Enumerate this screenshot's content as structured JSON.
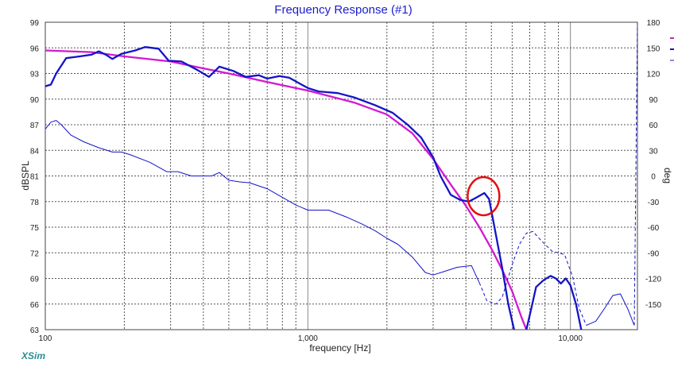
{
  "chart_data": {
    "type": "line",
    "title": "Frequency Response (#1)",
    "xlabel": "frequency [Hz]",
    "ylabel_left": "dBSPL",
    "ylabel_right": "deg",
    "x_scale": "log",
    "xlim": [
      100,
      18000
    ],
    "ylim_left": [
      63,
      99
    ],
    "ylim_right": [
      -180,
      180
    ],
    "x_tick_labels": [
      {
        "value": 100,
        "label": "100"
      },
      {
        "value": 1000,
        "label": "1,000"
      },
      {
        "value": 10000,
        "label": "10,000"
      }
    ],
    "y_left_ticks": [
      63,
      66,
      69,
      72,
      75,
      78,
      81,
      84,
      87,
      90,
      93,
      96,
      99
    ],
    "y_right_ticks": [
      -150,
      -120,
      -90,
      -60,
      -30,
      0,
      30,
      60,
      90,
      120,
      150,
      180
    ],
    "grid": true,
    "series": [
      {
        "axis": "left",
        "color": "#d11ad1",
        "style": "solid",
        "points": [
          [
            100,
            95.7
          ],
          [
            150,
            95.5
          ],
          [
            200,
            95.0
          ],
          [
            300,
            94.4
          ],
          [
            400,
            93.6
          ],
          [
            500,
            93.0
          ],
          [
            700,
            92.0
          ],
          [
            1000,
            91.0
          ],
          [
            1500,
            89.6
          ],
          [
            2000,
            88.2
          ],
          [
            2500,
            86.0
          ],
          [
            3000,
            83.0
          ],
          [
            3500,
            80.0
          ],
          [
            4000,
            77.5
          ],
          [
            4500,
            75.0
          ],
          [
            5000,
            72.5
          ],
          [
            5500,
            70.0
          ],
          [
            6000,
            67.5
          ],
          [
            6500,
            64.5
          ],
          [
            6800,
            63.0
          ]
        ]
      },
      {
        "axis": "left",
        "color": "#1414c8",
        "style": "solid",
        "points": [
          [
            100,
            91.5
          ],
          [
            105,
            91.7
          ],
          [
            110,
            93.0
          ],
          [
            120,
            94.8
          ],
          [
            135,
            95.0
          ],
          [
            150,
            95.2
          ],
          [
            160,
            95.6
          ],
          [
            170,
            95.2
          ],
          [
            180,
            94.7
          ],
          [
            195,
            95.3
          ],
          [
            220,
            95.7
          ],
          [
            240,
            96.1
          ],
          [
            270,
            95.9
          ],
          [
            295,
            94.5
          ],
          [
            330,
            94.4
          ],
          [
            380,
            93.4
          ],
          [
            420,
            92.6
          ],
          [
            460,
            93.8
          ],
          [
            520,
            93.3
          ],
          [
            580,
            92.6
          ],
          [
            650,
            92.8
          ],
          [
            700,
            92.4
          ],
          [
            780,
            92.7
          ],
          [
            850,
            92.5
          ],
          [
            920,
            91.9
          ],
          [
            1000,
            91.3
          ],
          [
            1100,
            90.9
          ],
          [
            1300,
            90.7
          ],
          [
            1500,
            90.2
          ],
          [
            1800,
            89.3
          ],
          [
            2100,
            88.4
          ],
          [
            2400,
            87.0
          ],
          [
            2700,
            85.5
          ],
          [
            3000,
            83.2
          ],
          [
            3200,
            81.0
          ],
          [
            3500,
            78.8
          ],
          [
            3800,
            78.2
          ],
          [
            4100,
            78.0
          ],
          [
            4400,
            78.5
          ],
          [
            4700,
            79.0
          ],
          [
            4900,
            78.3
          ],
          [
            5100,
            75.5
          ],
          [
            5500,
            70.2
          ],
          [
            5800,
            66.0
          ],
          [
            6100,
            63.0
          ]
        ]
      },
      {
        "axis": "left",
        "color": "#1414c8",
        "style": "solid",
        "points": [
          [
            6800,
            63.0
          ],
          [
            7100,
            65.5
          ],
          [
            7400,
            68.0
          ],
          [
            7900,
            68.8
          ],
          [
            8400,
            69.3
          ],
          [
            8800,
            69.0
          ],
          [
            9200,
            68.4
          ],
          [
            9600,
            69.0
          ],
          [
            10000,
            68.2
          ],
          [
            10500,
            66.0
          ],
          [
            11000,
            63.0
          ]
        ]
      },
      {
        "axis": "right",
        "color": "#1414c8",
        "style": "solid",
        "points": [
          [
            100,
            55
          ],
          [
            105,
            63
          ],
          [
            110,
            65
          ],
          [
            115,
            60
          ],
          [
            125,
            48
          ],
          [
            140,
            40
          ],
          [
            160,
            33
          ],
          [
            180,
            28
          ],
          [
            195,
            28
          ],
          [
            210,
            25
          ],
          [
            250,
            16
          ],
          [
            290,
            5
          ],
          [
            320,
            5
          ],
          [
            360,
            0
          ],
          [
            400,
            0
          ],
          [
            430,
            0
          ],
          [
            460,
            4
          ],
          [
            500,
            -5
          ],
          [
            550,
            -7
          ],
          [
            600,
            -8
          ],
          [
            700,
            -15
          ],
          [
            800,
            -25
          ],
          [
            900,
            -34
          ],
          [
            1000,
            -40
          ],
          [
            1200,
            -40
          ],
          [
            1400,
            -48
          ],
          [
            1600,
            -56
          ],
          [
            1800,
            -64
          ],
          [
            2000,
            -73
          ],
          [
            2200,
            -80
          ],
          [
            2500,
            -95
          ],
          [
            2800,
            -113
          ],
          [
            3000,
            -116
          ],
          [
            3300,
            -112
          ],
          [
            3700,
            -107
          ],
          [
            4200,
            -105
          ],
          [
            4500,
            -125
          ]
        ]
      },
      {
        "axis": "right",
        "color": "#1414c8",
        "style": "dashed",
        "points": [
          [
            4500,
            -125
          ],
          [
            4800,
            -146
          ],
          [
            5200,
            -150
          ],
          [
            5500,
            -142
          ],
          [
            6000,
            -104
          ],
          [
            6400,
            -80
          ],
          [
            6800,
            -67
          ],
          [
            7200,
            -65
          ],
          [
            7700,
            -75
          ],
          [
            8500,
            -88
          ],
          [
            9500,
            -92
          ],
          [
            10200,
            -118
          ],
          [
            10800,
            -155
          ],
          [
            11500,
            -175
          ]
        ]
      },
      {
        "axis": "right",
        "color": "#1414c8",
        "style": "solid",
        "points": [
          [
            11500,
            -175
          ],
          [
            12500,
            -170
          ],
          [
            13500,
            -155
          ],
          [
            14500,
            -140
          ],
          [
            15500,
            -138
          ],
          [
            16500,
            -155
          ],
          [
            17500,
            -175
          ]
        ]
      },
      {
        "axis": "right",
        "color": "#1414c8",
        "style": "dashed",
        "points": [
          [
            17500,
            -175
          ],
          [
            18000,
            180
          ]
        ]
      }
    ],
    "annotation": {
      "type": "circle",
      "x": 4700,
      "y": 79.0,
      "color": "#e41010"
    }
  },
  "watermark": "XSim"
}
